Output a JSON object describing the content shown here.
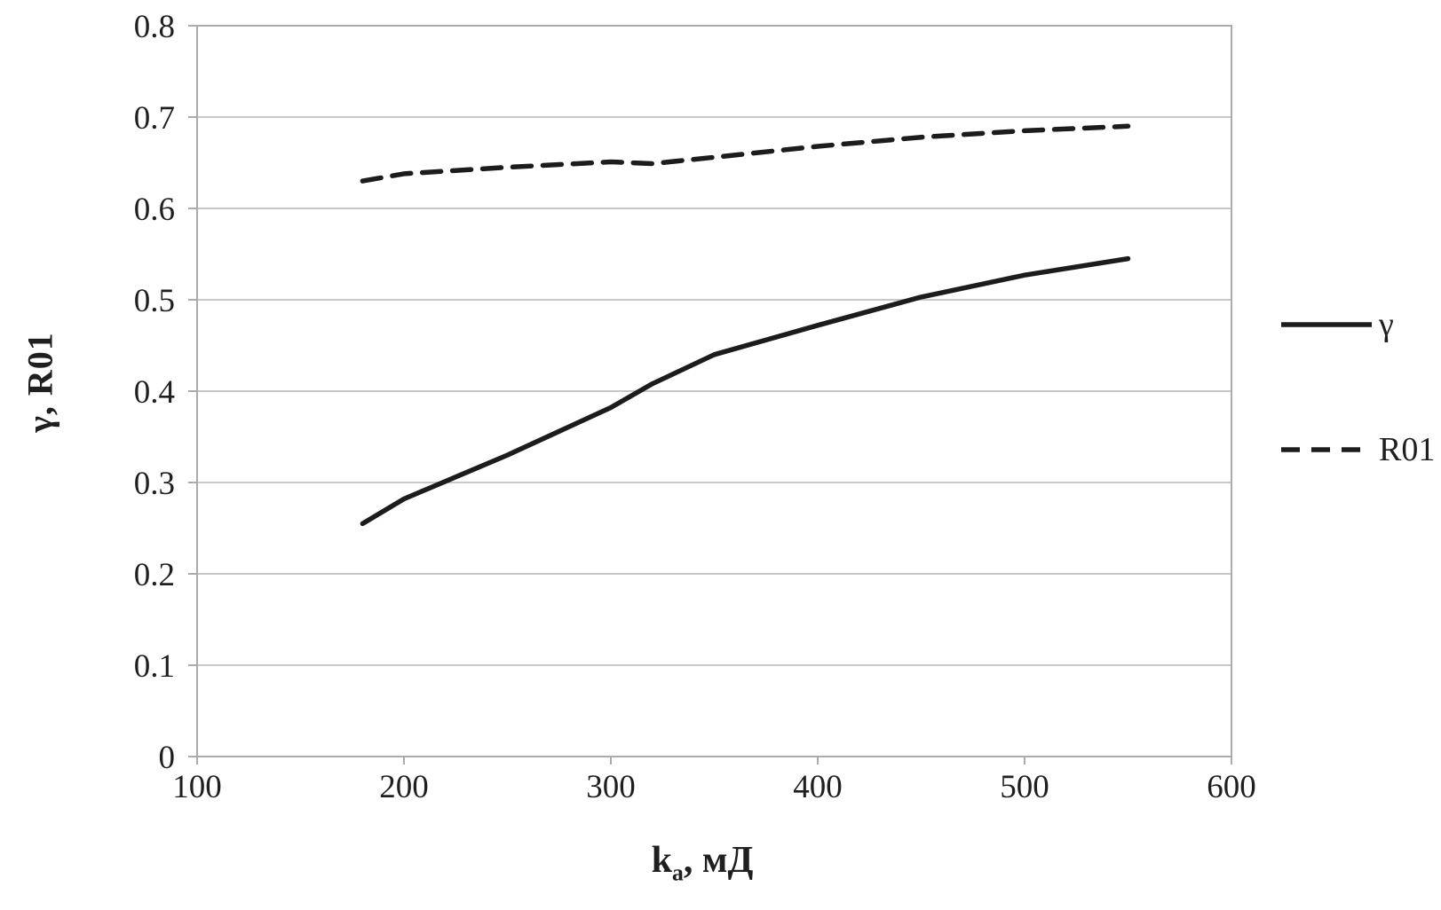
{
  "chart_data": {
    "type": "line",
    "title": "",
    "xlabel": {
      "base": "k",
      "sub": "a",
      "rest": ", мД"
    },
    "ylabel": "γ, R01",
    "xlim": [
      100,
      600
    ],
    "ylim": [
      0,
      0.8
    ],
    "xticks": [
      100,
      200,
      300,
      400,
      500,
      600
    ],
    "yticks": [
      0,
      0.1,
      0.2,
      0.3,
      0.4,
      0.5,
      0.6,
      0.7,
      0.8
    ],
    "grid": "horizontal-only",
    "legend_position": "right-outside",
    "x": [
      180,
      200,
      250,
      300,
      320,
      350,
      400,
      450,
      500,
      550
    ],
    "series": [
      {
        "name": "γ",
        "line_style": "solid",
        "color": "#1c1c1c",
        "values": [
          0.255,
          0.282,
          0.33,
          0.382,
          0.408,
          0.44,
          0.472,
          0.503,
          0.527,
          0.545
        ]
      },
      {
        "name": "R01",
        "line_style": "dashed",
        "color": "#1c1c1c",
        "values": [
          0.63,
          0.638,
          0.645,
          0.651,
          0.649,
          0.656,
          0.668,
          0.678,
          0.685,
          0.69
        ]
      }
    ]
  },
  "legend": {
    "items": [
      {
        "label": "γ",
        "line_style": "solid"
      },
      {
        "label": "R01",
        "line_style": "dashed"
      }
    ]
  },
  "colors": {
    "line": "#1c1c1c",
    "grid": "#c8c8c8",
    "axis": "#ababab",
    "text": "#1f1f1f",
    "background": "#ffffff"
  }
}
